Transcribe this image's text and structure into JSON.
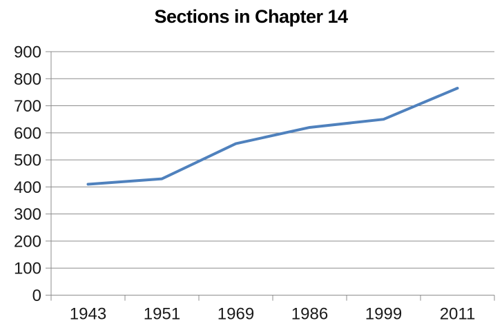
{
  "chart_data": {
    "type": "line",
    "title": "Sections in Chapter 14",
    "categories": [
      "1943",
      "1951",
      "1969",
      "1986",
      "1999",
      "2011"
    ],
    "values": [
      410,
      430,
      560,
      620,
      650,
      765
    ],
    "xlabel": "",
    "ylabel": "",
    "ylim": [
      0,
      900
    ],
    "ytick_step": 100,
    "grid": true,
    "legend": false,
    "line_width": 4,
    "colors": {
      "line": "#4F81BD",
      "gridline": "#8c8c8c",
      "axis": "#8c8c8c",
      "title_text": "#000000",
      "tick_text": "#1a1a1a",
      "background": "#ffffff"
    }
  }
}
